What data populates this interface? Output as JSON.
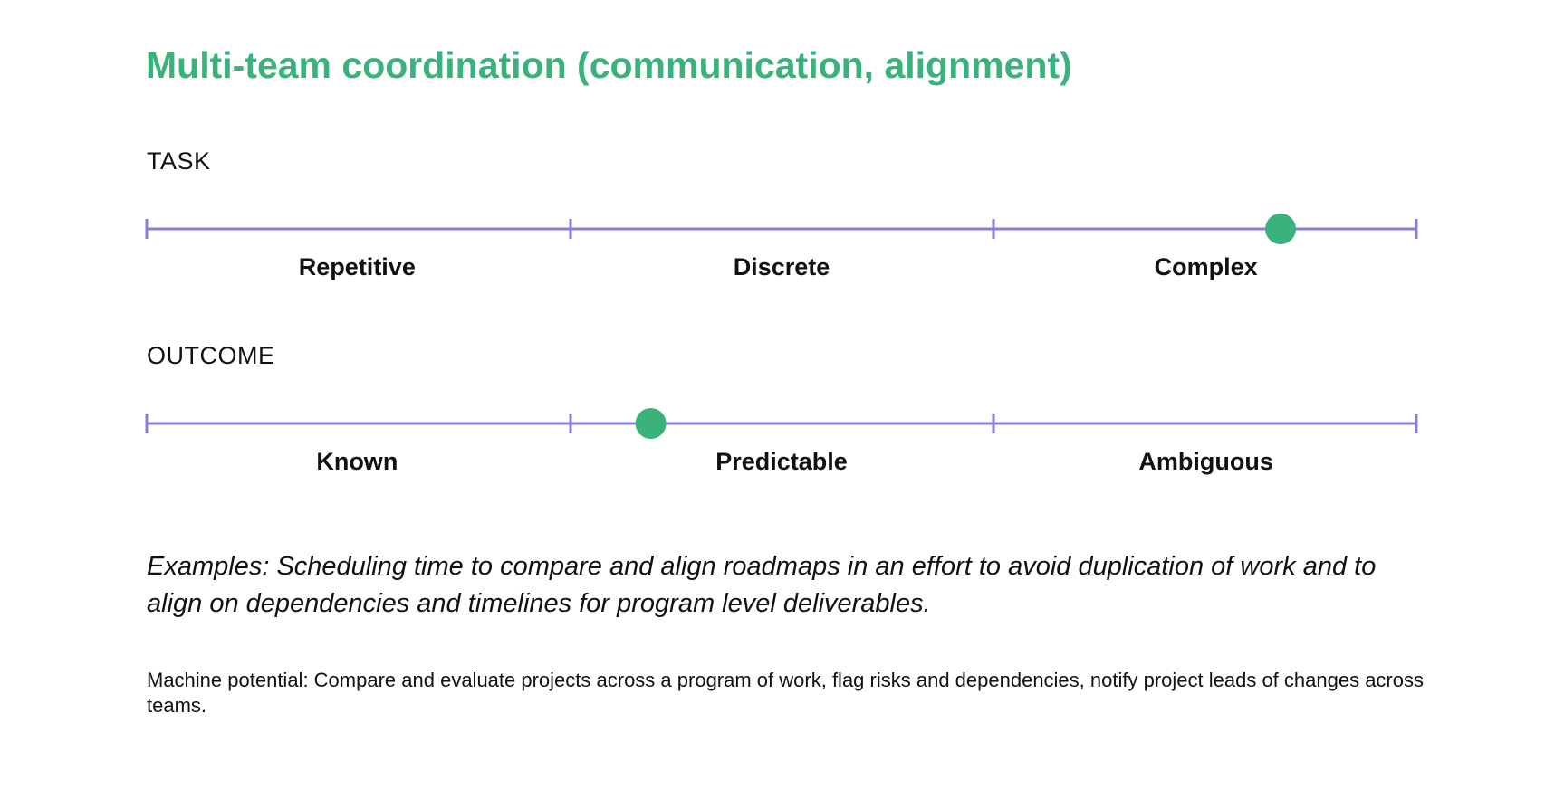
{
  "title": "Multi-team coordination (communication, alignment)",
  "colors": {
    "accent": "#3bb27c",
    "scale_line": "#8b7dd8",
    "text": "#111111"
  },
  "scales": [
    {
      "label": "TASK",
      "points": [
        "Repetitive",
        "Discrete",
        "Complex"
      ],
      "marker_value": 0.893
    },
    {
      "label": "OUTCOME",
      "points": [
        "Known",
        "Predictable",
        "Ambiguous"
      ],
      "marker_value": 0.397
    }
  ],
  "examples": "Examples: Scheduling time to compare and align roadmaps in an effort to avoid duplication of work and to align on dependencies and timelines for program level deliverables.",
  "machine_potential": "Machine potential: Compare and evaluate projects across a program of work, flag risks and dependencies, notify project leads of changes across teams."
}
